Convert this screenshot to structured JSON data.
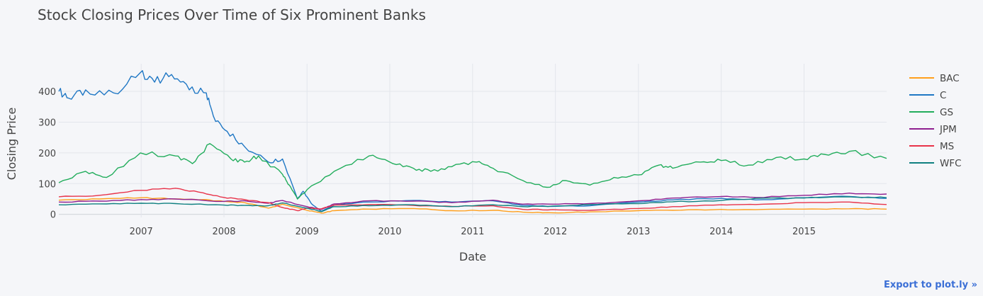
{
  "export_link": "Export to plot.ly »",
  "chart_data": {
    "type": "line",
    "title": "Stock Closing Prices Over Time of Six Prominent Banks",
    "xlabel": "Date",
    "ylabel": "Closing Price",
    "xlim": [
      "2006-01-03",
      "2015-12-31"
    ],
    "ylim": [
      -10,
      490
    ],
    "x_ticks": [
      "2007",
      "2008",
      "2009",
      "2010",
      "2011",
      "2012",
      "2013",
      "2014",
      "2015"
    ],
    "y_ticks": [
      0,
      100,
      200,
      300,
      400
    ],
    "grid": true,
    "legend_position": "right",
    "series": [
      {
        "name": "BAC",
        "color": "#ff9f1c",
        "x": [
          "2006-01-03",
          "2006-07-01",
          "2007-01-01",
          "2007-06-01",
          "2007-10-01",
          "2008-01-01",
          "2008-04-01",
          "2008-07-15",
          "2008-09-15",
          "2009-01-01",
          "2009-03-06",
          "2009-05-01",
          "2009-10-01",
          "2010-04-15",
          "2010-10-01",
          "2011-04-01",
          "2011-08-10",
          "2011-12-20",
          "2012-06-01",
          "2012-12-31",
          "2013-06-01",
          "2014-01-01",
          "2014-06-01",
          "2015-01-01",
          "2015-07-20",
          "2015-12-31"
        ],
        "y": [
          46,
          50,
          54,
          50,
          48,
          42,
          38,
          20,
          33,
          13,
          4,
          12,
          17,
          19,
          12,
          13,
          7,
          5,
          8,
          12,
          13,
          16,
          15,
          17,
          18,
          17
        ]
      },
      {
        "name": "C",
        "color": "#1f77c4",
        "x": [
          "2006-01-03",
          "2006-02-15",
          "2006-05-01",
          "2006-09-01",
          "2006-12-27",
          "2007-03-01",
          "2007-05-15",
          "2007-08-01",
          "2007-10-15",
          "2007-11-15",
          "2008-01-15",
          "2008-04-01",
          "2008-07-15",
          "2008-09-15",
          "2008-11-20",
          "2008-12-15",
          "2009-01-20",
          "2009-03-06",
          "2009-05-01",
          "2009-10-01",
          "2010-04-15",
          "2010-10-01",
          "2011-04-01",
          "2011-08-10",
          "2011-12-20",
          "2012-06-01",
          "2012-12-31",
          "2013-06-01",
          "2014-01-01",
          "2014-06-01",
          "2015-01-01",
          "2015-07-20",
          "2015-12-31"
        ],
        "y": [
          400,
          378,
          405,
          395,
          460,
          430,
          455,
          405,
          395,
          320,
          270,
          220,
          170,
          180,
          50,
          75,
          35,
          10,
          30,
          40,
          45,
          40,
          44,
          29,
          26,
          28,
          40,
          47,
          52,
          47,
          54,
          58,
          52
        ]
      },
      {
        "name": "GS",
        "color": "#22ad5c",
        "x": [
          "2006-01-03",
          "2006-05-01",
          "2006-08-01",
          "2006-12-29",
          "2007-06-01",
          "2007-08-15",
          "2007-10-31",
          "2008-02-01",
          "2008-04-01",
          "2008-06-01",
          "2008-09-15",
          "2008-10-15",
          "2008-11-20",
          "2009-01-01",
          "2009-05-01",
          "2009-10-01",
          "2010-01-15",
          "2010-04-15",
          "2010-07-01",
          "2010-10-01",
          "2011-01-18",
          "2011-04-01",
          "2011-08-10",
          "2011-11-25",
          "2012-02-15",
          "2012-06-01",
          "2012-09-15",
          "2012-12-31",
          "2013-04-01",
          "2013-06-01",
          "2013-10-01",
          "2014-01-01",
          "2014-05-01",
          "2014-09-01",
          "2015-01-01",
          "2015-04-01",
          "2015-07-20",
          "2015-12-31"
        ],
        "y": [
          103,
          140,
          120,
          200,
          190,
          165,
          230,
          180,
          170,
          190,
          130,
          95,
          50,
          80,
          140,
          190,
          165,
          150,
          140,
          155,
          170,
          150,
          110,
          88,
          110,
          95,
          120,
          128,
          160,
          150,
          170,
          175,
          160,
          185,
          180,
          195,
          205,
          182
        ]
      },
      {
        "name": "JPM",
        "color": "#8e1f8f",
        "x": [
          "2006-01-03",
          "2006-07-01",
          "2007-01-01",
          "2007-06-01",
          "2008-01-01",
          "2008-04-01",
          "2008-07-15",
          "2008-09-15",
          "2009-01-01",
          "2009-03-06",
          "2009-05-01",
          "2009-10-01",
          "2010-04-15",
          "2010-10-01",
          "2011-04-01",
          "2011-08-10",
          "2011-12-20",
          "2012-06-01",
          "2012-12-31",
          "2013-06-01",
          "2014-01-01",
          "2014-06-01",
          "2015-01-01",
          "2015-07-20",
          "2015-12-31"
        ],
        "y": [
          40,
          43,
          48,
          50,
          42,
          44,
          36,
          45,
          25,
          16,
          34,
          44,
          43,
          38,
          46,
          33,
          33,
          35,
          44,
          53,
          58,
          55,
          62,
          69,
          66
        ]
      },
      {
        "name": "MS",
        "color": "#e8334a",
        "x": [
          "2006-01-03",
          "2006-07-01",
          "2007-01-01",
          "2007-06-01",
          "2007-10-01",
          "2008-01-01",
          "2008-04-01",
          "2008-07-15",
          "2008-09-15",
          "2008-11-20",
          "2009-01-01",
          "2009-03-06",
          "2009-05-01",
          "2009-10-01",
          "2010-04-15",
          "2010-10-01",
          "2011-04-01",
          "2011-08-10",
          "2011-12-20",
          "2012-06-01",
          "2012-12-31",
          "2013-06-01",
          "2014-01-01",
          "2014-06-01",
          "2015-01-01",
          "2015-07-20",
          "2015-12-31"
        ],
        "y": [
          57,
          62,
          78,
          85,
          70,
          55,
          48,
          38,
          22,
          12,
          20,
          18,
          30,
          32,
          29,
          26,
          28,
          16,
          15,
          13,
          19,
          25,
          31,
          32,
          38,
          40,
          32
        ]
      },
      {
        "name": "WFC",
        "color": "#0f8080",
        "x": [
          "2006-01-03",
          "2006-07-01",
          "2007-01-01",
          "2007-06-01",
          "2008-01-01",
          "2008-04-01",
          "2008-07-15",
          "2008-09-15",
          "2009-01-01",
          "2009-03-06",
          "2009-05-01",
          "2009-10-01",
          "2010-04-15",
          "2010-10-01",
          "2011-04-01",
          "2011-08-10",
          "2011-12-20",
          "2012-06-01",
          "2012-12-31",
          "2013-06-01",
          "2014-01-01",
          "2014-06-01",
          "2015-01-01",
          "2015-07-20",
          "2015-12-31"
        ],
        "y": [
          31,
          34,
          36,
          35,
          30,
          29,
          28,
          37,
          20,
          9,
          25,
          28,
          31,
          25,
          31,
          25,
          27,
          32,
          35,
          41,
          45,
          52,
          53,
          57,
          54
        ]
      }
    ]
  }
}
